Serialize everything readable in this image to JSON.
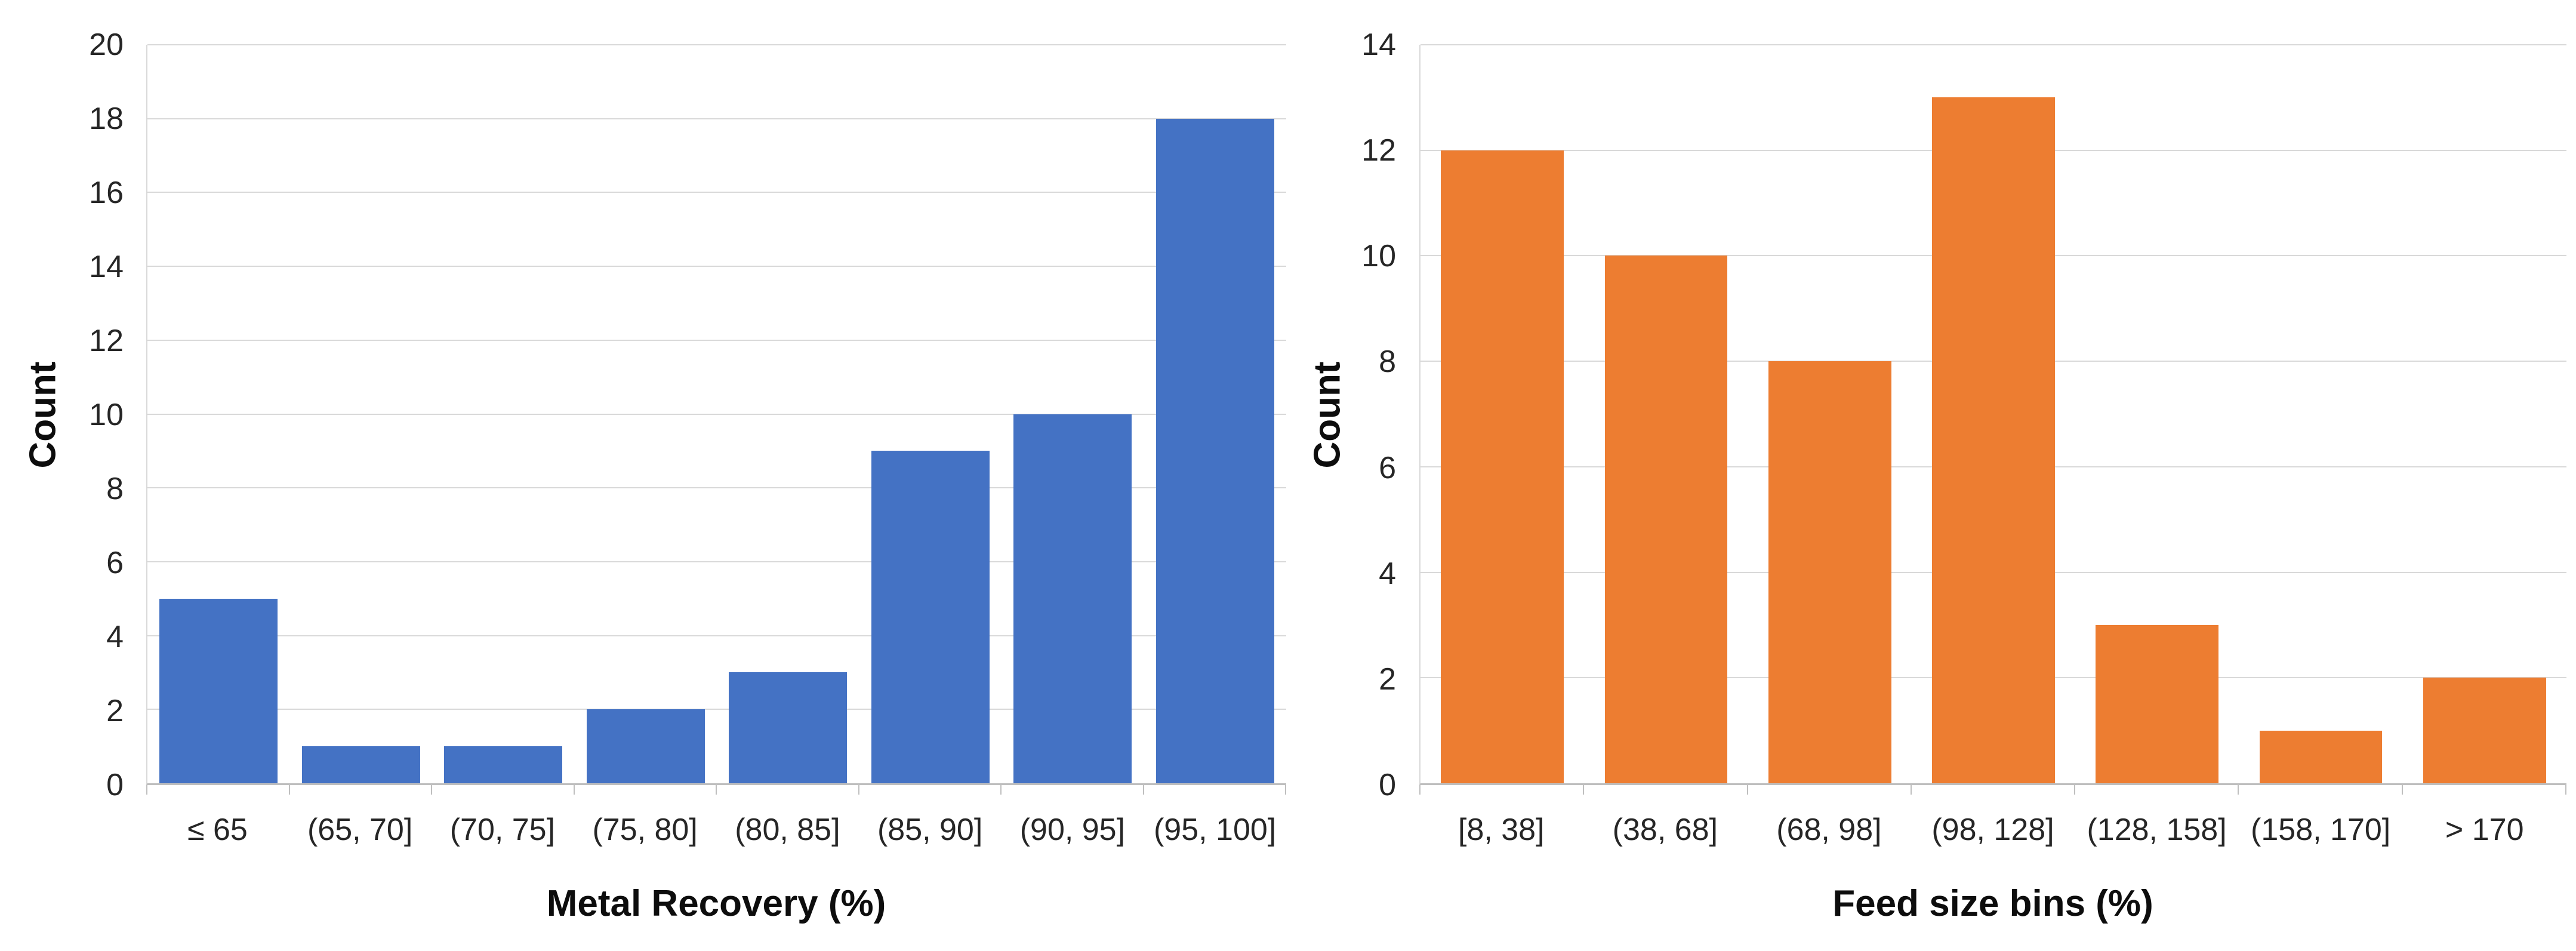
{
  "colors": {
    "background": "#ffffff",
    "gridline": "#d9d9d9",
    "axis_line": "#bfbfbf",
    "tick_text": "#262626",
    "title_text": "#0d0d0d",
    "left_bar": "#4472C4",
    "right_bar": "#ED7D31"
  },
  "chart_data": [
    {
      "type": "bar",
      "title": "",
      "ylabel": "Count",
      "xlabel": "Metal Recovery (%)",
      "categories": [
        "≤ 65",
        "(65, 70]",
        "(70, 75]",
        "(75, 80]",
        "(80, 85]",
        "(85, 90]",
        "(90, 95]",
        "(95, 100]"
      ],
      "values": [
        5,
        1,
        1,
        2,
        3,
        9,
        10,
        18
      ],
      "ylim": [
        0,
        20
      ],
      "ytick_step": 2,
      "ytick_labels": [
        "0",
        "2",
        "4",
        "6",
        "8",
        "10",
        "12",
        "14",
        "16",
        "18",
        "20"
      ],
      "bar_color": "#4472C4",
      "grid": true,
      "legend": false
    },
    {
      "type": "bar",
      "title": "",
      "ylabel": "Count",
      "xlabel": "Feed size bins (%)",
      "categories": [
        "[8, 38]",
        "(38, 68]",
        "(68, 98]",
        "(98, 128]",
        "(128, 158]",
        "(158, 170]",
        "> 170"
      ],
      "values": [
        12,
        10,
        8,
        13,
        3,
        1,
        2
      ],
      "ylim": [
        0,
        14
      ],
      "ytick_step": 2,
      "ytick_labels": [
        "0",
        "2",
        "4",
        "6",
        "8",
        "10",
        "12",
        "14"
      ],
      "bar_color": "#ED7D31",
      "grid": true,
      "legend": false
    }
  ]
}
